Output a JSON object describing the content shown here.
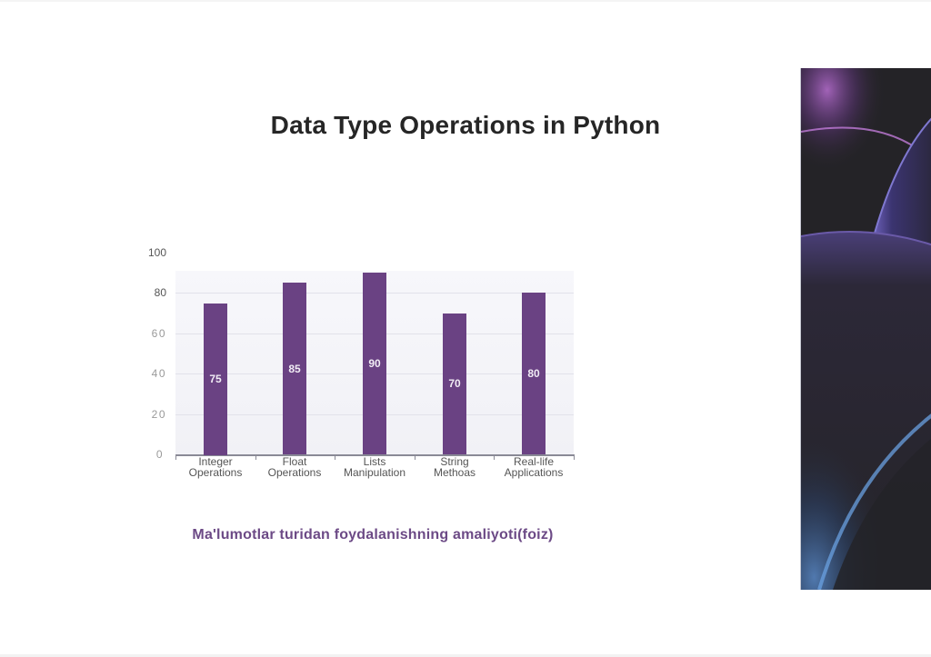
{
  "slide": {
    "title": "Data Type Operations in Python",
    "caption": "Ma'lumotlar turidan foydalanishning amaliyoti(foiz)"
  },
  "decorative_image": {
    "description": "dark space scene with purple and blue glowing planet arcs",
    "colors": {
      "background": "#242327",
      "purple_glow": "#8a4fb0",
      "blue_glow": "#4a78b0"
    }
  },
  "chart_data": {
    "type": "bar",
    "title": "Data Type Operations in Python",
    "xlabel": "",
    "ylabel": "",
    "ylim": [
      0,
      100
    ],
    "y_ticks": [
      "0",
      "20",
      "40",
      "60",
      "80",
      "100"
    ],
    "grid": true,
    "legend": null,
    "categories": [
      "Integer Operations",
      "Float Operations",
      "Lists Manipulation",
      "String Methoas",
      "Real-life Applications"
    ],
    "category_lines": [
      [
        "Integer",
        "Operations"
      ],
      [
        "Float",
        "Operations"
      ],
      [
        "Lists",
        "Manipulation"
      ],
      [
        "String",
        "Methoas"
      ],
      [
        "Real-life",
        "Applications"
      ]
    ],
    "values": [
      75,
      85,
      90,
      70,
      80
    ],
    "data_labels": [
      "75",
      "85",
      "90",
      "70",
      "80"
    ],
    "bar_color": "#6a4283",
    "caption": "Ma'lumotlar turidan foydalanishning amaliyoti(foiz)"
  }
}
